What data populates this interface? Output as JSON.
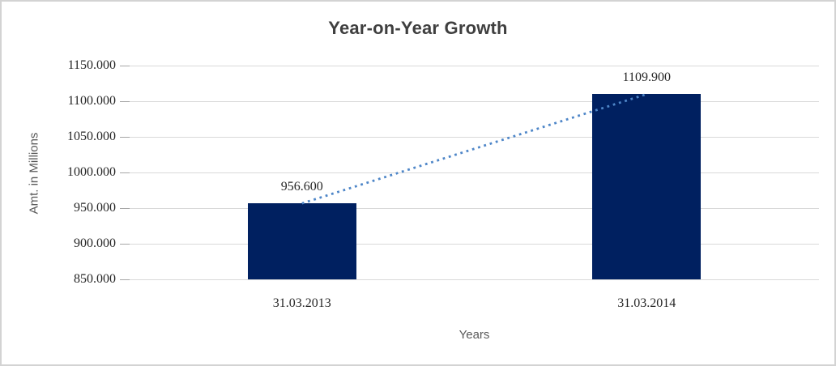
{
  "chart_data": {
    "type": "bar",
    "title": "Year-on-Year Growth",
    "categories": [
      "31.03.2013",
      "31.03.2014"
    ],
    "values": [
      956.6,
      1109.9
    ],
    "data_labels": [
      "956.600",
      "1109.900"
    ],
    "xlabel": "Years",
    "ylabel": "Amt. in Millions",
    "ylim": [
      850,
      1150
    ],
    "ytick_step": 50,
    "yticks": [
      {
        "value": 850,
        "label": "850.000"
      },
      {
        "value": 900,
        "label": "900.000"
      },
      {
        "value": 950,
        "label": "950.000"
      },
      {
        "value": 1000,
        "label": "1000.000"
      },
      {
        "value": 1050,
        "label": "1050.000"
      },
      {
        "value": 1100,
        "label": "1100.000"
      },
      {
        "value": 1150,
        "label": "1150.000"
      }
    ],
    "grid": true,
    "legend": "none",
    "trendline": {
      "type": "linear",
      "style": "dotted",
      "from_value": 956.6,
      "to_value": 1109.9
    },
    "colors": {
      "bar": "#002060",
      "trendline": "#4E86C8",
      "gridline": "#D9D9D9",
      "tick_mark": "#A6A6A6",
      "title": "#3F3F3F",
      "axis_title": "#595959",
      "tick_label": "#262626",
      "border": "#D3D3D3",
      "background": "#FFFFFF"
    }
  }
}
